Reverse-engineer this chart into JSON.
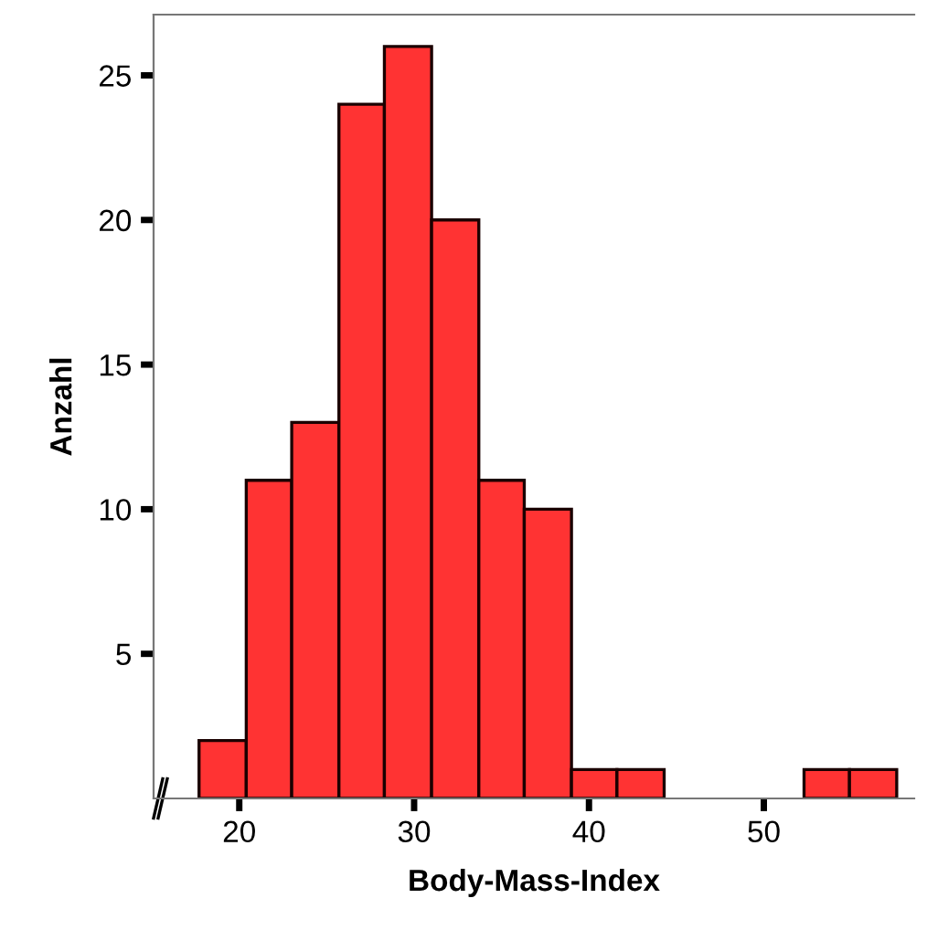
{
  "chart_data": {
    "type": "histogram",
    "xlabel": "Body-Mass-Index",
    "ylabel": "Anzahl",
    "color": "#ff3333",
    "bins": [
      17.7,
      20.4,
      23.0,
      25.7,
      28.3,
      31.0,
      33.7,
      36.3,
      39.0,
      41.6,
      44.3,
      52.3,
      54.9,
      57.6
    ],
    "values": [
      2,
      11,
      13,
      24,
      26,
      20,
      11,
      10,
      1,
      1,
      0,
      1,
      1
    ],
    "xlim": [
      15.1,
      58.6
    ],
    "ylim": [
      0,
      27.1
    ],
    "xticks": [
      20,
      30,
      40,
      50
    ],
    "yticks": [
      5,
      10,
      15,
      20,
      25
    ],
    "grid": false
  }
}
